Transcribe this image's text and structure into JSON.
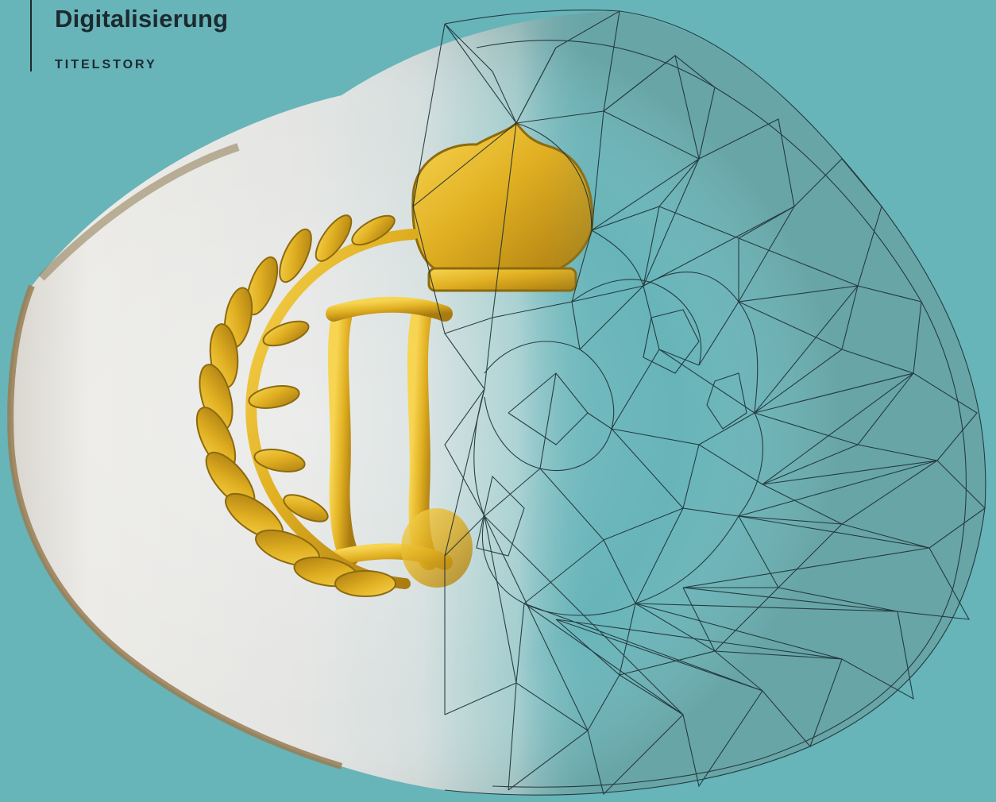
{
  "header": {
    "title": "Digitalisierung",
    "section_label": "TITELSTORY"
  },
  "illustration": {
    "subject": "3d-scanned-helmet-with-golden-emblem-and-wireframe-mesh"
  },
  "colors": {
    "background": "#67b4b9",
    "text": "#1c2a2f",
    "divider": "#1c2a2f",
    "emblem_gold": "#e1b022",
    "shell_light": "#eae9e6",
    "shell_edge": "#9a7d52",
    "mesh_line": "#1d3035"
  }
}
